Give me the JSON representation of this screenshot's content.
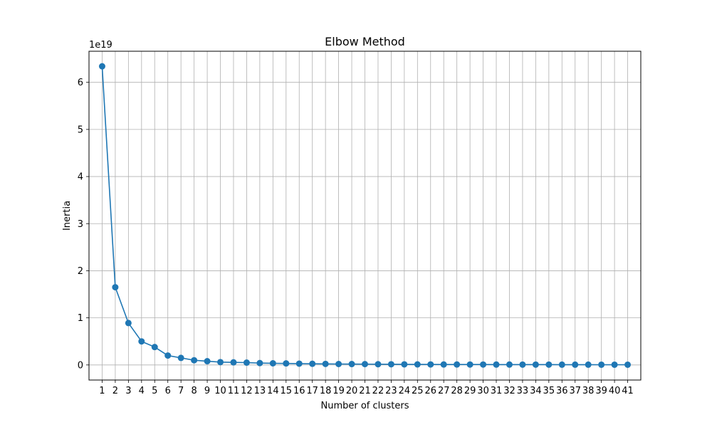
{
  "chart_data": {
    "type": "line",
    "title": "Elbow Method",
    "xlabel": "Number of clusters",
    "ylabel": "Inertia",
    "y_scale_label": "1e19",
    "x": [
      1,
      2,
      3,
      4,
      5,
      6,
      7,
      8,
      9,
      10,
      11,
      12,
      13,
      14,
      15,
      16,
      17,
      18,
      19,
      20,
      21,
      22,
      23,
      24,
      25,
      26,
      27,
      28,
      29,
      30,
      31,
      32,
      33,
      34,
      35,
      36,
      37,
      38,
      39,
      40,
      41
    ],
    "x_tick_labels": [
      "1",
      "2",
      "3",
      "4",
      "5",
      "6",
      "7",
      "8",
      "9",
      "10",
      "11",
      "12",
      "13",
      "14",
      "15",
      "16",
      "17",
      "18",
      "19",
      "20",
      "21",
      "22",
      "23",
      "24",
      "25",
      "26",
      "27",
      "28",
      "29",
      "30",
      "31",
      "32",
      "33",
      "34",
      "35",
      "36",
      "37",
      "38",
      "39",
      "40",
      "41"
    ],
    "y": [
      6.34,
      1.65,
      0.89,
      0.5,
      0.38,
      0.2,
      0.15,
      0.1,
      0.08,
      0.06,
      0.055,
      0.05,
      0.04,
      0.035,
      0.033,
      0.028,
      0.025,
      0.022,
      0.02,
      0.019,
      0.018,
      0.016,
      0.015,
      0.013,
      0.012,
      0.011,
      0.01,
      0.01,
      0.009,
      0.009,
      0.008,
      0.008,
      0.007,
      0.007,
      0.007,
      0.006,
      0.006,
      0.006,
      0.005,
      0.005,
      0.005
    ],
    "y_ticks": [
      0,
      1,
      2,
      3,
      4,
      5,
      6
    ],
    "y_tick_labels": [
      "0",
      "1",
      "2",
      "3",
      "4",
      "5",
      "6"
    ],
    "xlim": [
      0,
      42
    ],
    "ylim": [
      -0.32,
      6.66
    ],
    "grid": true,
    "line_color": "#1f77b4",
    "marker": "circle"
  }
}
